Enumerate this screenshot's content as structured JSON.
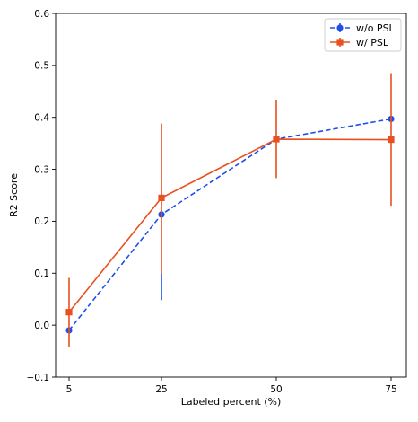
{
  "chart_data": {
    "type": "line",
    "title": "",
    "xlabel": "Labeled percent (%)",
    "ylabel": "R2 Score",
    "categories": [
      "5",
      "25",
      "50",
      "75"
    ],
    "ylim": [
      -0.1,
      0.6
    ],
    "yticks": [
      "−0.1",
      "0.0",
      "0.1",
      "0.2",
      "0.3",
      "0.4",
      "0.5",
      "0.6"
    ],
    "yticks_values": [
      -0.1,
      0.0,
      0.1,
      0.2,
      0.3,
      0.4,
      0.5,
      0.6
    ],
    "grid": false,
    "legend_position": "top-right",
    "series": [
      {
        "name": "w/o PSL",
        "values": [
          -0.01,
          0.213,
          0.358,
          0.397
        ],
        "err_low": [
          null,
          0.048,
          null,
          null
        ],
        "err_high": [
          null,
          0.1,
          null,
          null
        ],
        "color": "#1f4fe8",
        "line_style": "dashed",
        "marker": "circle"
      },
      {
        "name": "w/ PSL",
        "values": [
          0.025,
          0.245,
          0.358,
          0.357
        ],
        "err_low": [
          -0.042,
          0.1,
          0.283,
          0.23
        ],
        "err_high": [
          0.091,
          0.388,
          0.434,
          0.485
        ],
        "color": "#e8501f",
        "line_style": "solid",
        "marker": "square"
      }
    ]
  }
}
